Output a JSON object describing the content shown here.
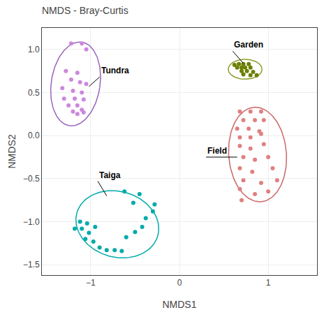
{
  "chart_data": {
    "type": "scatter",
    "title": "NMDS - Bray-Curtis",
    "x_label": "NMDS1",
    "y_label": "NMDS2",
    "xlim": [
      -1.55,
      1.55
    ],
    "ylim": [
      -1.62,
      1.25
    ],
    "xticks": [
      {
        "value": -1,
        "label": "−1"
      },
      0,
      1
    ],
    "yticks": [
      {
        "value": -1.5,
        "label": "−1.5"
      },
      {
        "value": -1.0,
        "label": "−1.0"
      },
      {
        "value": -0.5,
        "label": "−0.5"
      },
      {
        "value": 0.0,
        "label": "0.0"
      },
      0.5,
      {
        "value": 1.0,
        "label": "1.0"
      }
    ],
    "grid": true,
    "series": [
      {
        "color": "#cc88dd",
        "points": [
          [
            -1.22,
            1.07
          ],
          [
            -1.1,
            1.07
          ],
          [
            -1.05,
            1.0
          ],
          [
            -1.28,
            0.75
          ],
          [
            -1.15,
            0.73
          ],
          [
            -1.22,
            0.65
          ],
          [
            -1.12,
            0.62
          ],
          [
            -1.05,
            0.6
          ],
          [
            -1.32,
            0.55
          ],
          [
            -1.2,
            0.52
          ],
          [
            -1.1,
            0.5
          ],
          [
            -1.3,
            0.43
          ],
          [
            -1.18,
            0.43
          ],
          [
            -1.08,
            0.42
          ],
          [
            -1.25,
            0.35
          ],
          [
            -1.15,
            0.35
          ],
          [
            -1.1,
            0.3
          ],
          [
            -1.2,
            0.28
          ],
          [
            -1.08,
            0.27
          ],
          [
            -1.15,
            0.25
          ]
        ],
        "ellipse": {
          "cx": -1.17,
          "cy": 0.6,
          "width": 0.55,
          "height": 0.98,
          "angle": -8,
          "color": "#9966bb"
        }
      },
      {
        "color": "#6b8000",
        "points": [
          [
            0.62,
            0.82
          ],
          [
            0.67,
            0.83
          ],
          [
            0.72,
            0.83
          ],
          [
            0.78,
            0.83
          ],
          [
            0.65,
            0.79
          ],
          [
            0.7,
            0.79
          ],
          [
            0.74,
            0.79
          ],
          [
            0.8,
            0.79
          ],
          [
            0.7,
            0.75
          ],
          [
            0.76,
            0.75
          ],
          [
            0.83,
            0.74
          ],
          [
            0.72,
            0.71
          ],
          [
            0.8,
            0.7
          ],
          [
            0.87,
            0.7
          ]
        ],
        "ellipse": {
          "cx": 0.74,
          "cy": 0.77,
          "width": 0.38,
          "height": 0.23,
          "angle": 0,
          "color": "#8b9e2a"
        }
      },
      {
        "color": "#00aaaa",
        "points": [
          [
            -1.12,
            -1.0
          ],
          [
            -1.04,
            -1.02
          ],
          [
            -1.18,
            -1.08
          ],
          [
            -1.1,
            -1.08
          ],
          [
            -0.95,
            -1.06
          ],
          [
            -1.02,
            -1.13
          ],
          [
            -1.06,
            -1.2
          ],
          [
            -0.97,
            -1.23
          ],
          [
            -0.9,
            -1.3
          ],
          [
            -0.82,
            -1.33
          ],
          [
            -0.73,
            -1.33
          ],
          [
            -0.65,
            -1.34
          ],
          [
            -0.6,
            -1.18
          ],
          [
            -0.5,
            -1.12
          ],
          [
            -0.42,
            -1.06
          ],
          [
            -0.38,
            -0.96
          ],
          [
            -0.3,
            -0.88
          ],
          [
            -0.28,
            -0.8
          ],
          [
            -0.52,
            -0.78
          ],
          [
            -0.45,
            -0.68
          ],
          [
            -0.62,
            -0.65
          ]
        ],
        "ellipse": {
          "cx": -0.7,
          "cy": -1.03,
          "width": 0.95,
          "height": 0.76,
          "angle": -18,
          "color": "#00aaaa"
        }
      },
      {
        "color": "#e08080",
        "points": [
          [
            0.68,
            0.28
          ],
          [
            0.8,
            0.28
          ],
          [
            0.92,
            0.28
          ],
          [
            0.72,
            0.18
          ],
          [
            0.85,
            0.18
          ],
          [
            0.95,
            0.18
          ],
          [
            0.65,
            0.08
          ],
          [
            0.78,
            0.08
          ],
          [
            0.9,
            0.05
          ],
          [
            0.68,
            -0.02
          ],
          [
            0.8,
            -0.02
          ],
          [
            0.92,
            0.02
          ],
          [
            0.68,
            -0.12
          ],
          [
            0.8,
            -0.15
          ],
          [
            0.95,
            -0.1
          ],
          [
            0.72,
            -0.25
          ],
          [
            0.85,
            -0.28
          ],
          [
            1.0,
            -0.25
          ],
          [
            0.68,
            -0.38
          ],
          [
            0.82,
            -0.42
          ],
          [
            1.05,
            -0.38
          ],
          [
            0.72,
            -0.52
          ],
          [
            0.92,
            -0.55
          ],
          [
            1.1,
            -0.52
          ],
          [
            0.68,
            -0.62
          ],
          [
            0.85,
            -0.68
          ],
          [
            1.0,
            -0.65
          ],
          [
            0.7,
            -0.75
          ]
        ],
        "ellipse": {
          "cx": 0.88,
          "cy": -0.22,
          "width": 0.65,
          "height": 1.1,
          "angle": 4,
          "color": "#cc6666"
        }
      }
    ],
    "annotations": [
      {
        "text": "Tundra",
        "x": -1.02,
        "y": 0.57,
        "text_x": -0.9,
        "text_y": 0.68
      },
      {
        "text": "Garden",
        "x": 0.72,
        "y": 0.84,
        "text_x": 0.6,
        "text_y": 0.98
      },
      {
        "text": "Taiga",
        "x": -0.82,
        "y": -0.7,
        "text_x": -0.92,
        "text_y": -0.53
      },
      {
        "text": "Field",
        "x": 0.65,
        "y": -0.25,
        "text_x": 0.3,
        "text_y": -0.25
      }
    ]
  }
}
